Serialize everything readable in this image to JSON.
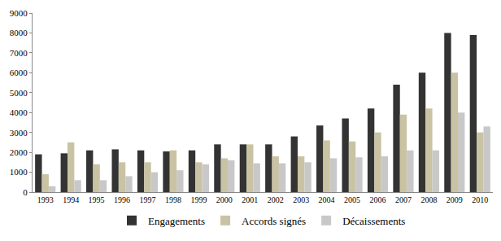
{
  "chart_data": {
    "type": "bar",
    "categories": [
      "1993",
      "1994",
      "1995",
      "1996",
      "1997",
      "1998",
      "1999",
      "2000",
      "2001",
      "2002",
      "2003",
      "2004",
      "2005",
      "2006",
      "2007",
      "2008",
      "2009",
      "2010"
    ],
    "series": [
      {
        "name": "Engagements",
        "color": "#333333",
        "values": [
          1900,
          1950,
          2100,
          2150,
          2100,
          2050,
          2100,
          2400,
          2400,
          2400,
          2800,
          3350,
          3700,
          4200,
          5400,
          6000,
          8000,
          7900
        ]
      },
      {
        "name": "Accords signés",
        "color": "#c9c3a3",
        "values": [
          900,
          2500,
          1400,
          1500,
          1500,
          2100,
          1500,
          1700,
          2400,
          1800,
          1800,
          2600,
          2550,
          3000,
          3900,
          4200,
          6000,
          3000
        ]
      },
      {
        "name": "Décaissements",
        "color": "#c8c8c8",
        "values": [
          300,
          600,
          600,
          800,
          1000,
          1100,
          1400,
          1600,
          1450,
          1450,
          1500,
          1700,
          1750,
          1800,
          2100,
          2100,
          4000,
          3300
        ]
      }
    ],
    "ylim": [
      0,
      9000
    ],
    "yticks": [
      0,
      1000,
      2000,
      3000,
      4000,
      5000,
      6000,
      7000,
      8000,
      9000
    ],
    "grid": false,
    "legend": "bottom"
  }
}
